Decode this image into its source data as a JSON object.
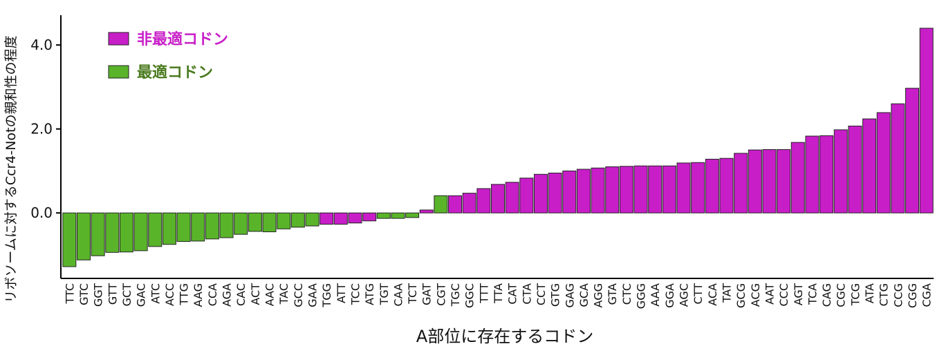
{
  "chart_data": {
    "type": "bar",
    "x_label": "A部位に存在するコドン",
    "y_label": "リボソームに対するCcr4-Notの親和性の程度",
    "categories": [
      "TTC",
      "GTC",
      "GGT",
      "GTT",
      "GCT",
      "GAC",
      "ATC",
      "ACC",
      "TTG",
      "AAG",
      "CCA",
      "AGA",
      "CAC",
      "ACT",
      "AAC",
      "TAC",
      "GCC",
      "GAA",
      "TGG",
      "ATT",
      "TCC",
      "ATG",
      "TGT",
      "CAA",
      "TCT",
      "GAT",
      "CGT",
      "TGC",
      "GGC",
      "TTT",
      "TTA",
      "CAT",
      "CTA",
      "CCT",
      "GTG",
      "GAG",
      "GCA",
      "AGG",
      "GTA",
      "CTC",
      "GGG",
      "AAA",
      "GGA",
      "AGC",
      "CTT",
      "ACA",
      "TAT",
      "GCG",
      "ACG",
      "AAT",
      "CCC",
      "AGT",
      "TCA",
      "CAG",
      "CGC",
      "TCG",
      "ATA",
      "CTG",
      "CCG",
      "CGG",
      "CGA"
    ],
    "series": [
      {
        "name": "非最適コドン",
        "color": "#c81ec8",
        "text_color": "#c81ec8",
        "values": [
          null,
          null,
          null,
          null,
          null,
          null,
          null,
          null,
          null,
          null,
          null,
          null,
          null,
          null,
          null,
          null,
          null,
          null,
          -0.27,
          -0.27,
          -0.24,
          -0.19,
          null,
          null,
          null,
          0.07,
          null,
          0.41,
          0.47,
          0.58,
          0.68,
          0.73,
          0.83,
          0.92,
          0.95,
          1.0,
          1.04,
          1.07,
          1.1,
          1.11,
          1.12,
          1.12,
          1.12,
          1.19,
          1.2,
          1.28,
          1.3,
          1.42,
          1.5,
          1.51,
          1.51,
          1.68,
          1.83,
          1.84,
          1.98,
          2.07,
          2.24,
          2.39,
          2.6,
          2.97,
          4.4
        ]
      },
      {
        "name": "最適コドン",
        "color": "#5ab42a",
        "text_color": "#4a7a1e",
        "values": [
          -1.28,
          -1.12,
          -1.02,
          -0.94,
          -0.93,
          -0.9,
          -0.8,
          -0.75,
          -0.68,
          -0.67,
          -0.62,
          -0.59,
          -0.51,
          -0.44,
          -0.45,
          -0.38,
          -0.34,
          -0.31,
          null,
          null,
          null,
          null,
          -0.13,
          -0.13,
          -0.11,
          null,
          0.41,
          null,
          null,
          null,
          null,
          null,
          null,
          null,
          null,
          null,
          null,
          null,
          null,
          null,
          null,
          null,
          null,
          null,
          null,
          null,
          null,
          null,
          null,
          null,
          null,
          null,
          null,
          null,
          null,
          null,
          null,
          null,
          null,
          null,
          null
        ]
      }
    ],
    "ylim": [
      -1.56,
      4.71
    ],
    "yticks": [
      {
        "value": 0,
        "label": "0.0"
      },
      {
        "value": 2,
        "label": "2.0"
      },
      {
        "value": 4,
        "label": "4.0"
      }
    ],
    "legend": "upper-left"
  }
}
